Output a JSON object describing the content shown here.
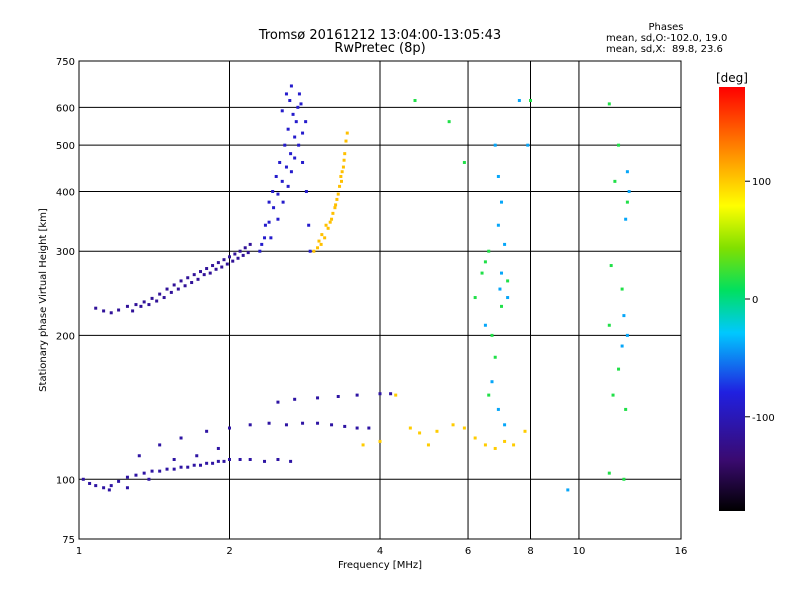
{
  "header": {
    "title": "Tromsø 20161212 13:04:00-13:05:43",
    "subtitle": "RwPretec (8p)"
  },
  "stats": {
    "heading": "Phases",
    "line1": "mean, sd,O:-102.0, 19.0",
    "line2": "mean, sd,X:  89.8, 23.6"
  },
  "chart_data": {
    "type": "scatter",
    "xlabel": "Frequency [MHz]",
    "ylabel": "Stationary phase Virtual Height [km]",
    "x_scale": "log",
    "y_scale": "log",
    "xlim": [
      1,
      16
    ],
    "ylim": [
      75,
      750
    ],
    "x_ticks": [
      1,
      2,
      4,
      6,
      8,
      10,
      16
    ],
    "x_tick_labels": [
      "1",
      "2",
      "4",
      "6",
      "8",
      "10",
      "16"
    ],
    "y_ticks": [
      75,
      100,
      200,
      300,
      400,
      500,
      600,
      750
    ],
    "y_tick_labels": [
      "75",
      "100",
      "200",
      "300",
      "400",
      "500",
      "600",
      "750"
    ],
    "grid": true,
    "color_by": "phase",
    "colorbar": {
      "label": "[deg]",
      "min": -180,
      "max": 180,
      "ticks": [
        -100,
        0,
        100
      ],
      "tick_labels": [
        "-100",
        "0",
        "100"
      ]
    },
    "series": [
      {
        "points": [
          [
            1.08,
            228
          ],
          [
            1.12,
            225
          ],
          [
            1.16,
            223
          ],
          [
            1.2,
            226
          ],
          [
            1.25,
            230
          ],
          [
            1.3,
            232
          ],
          [
            1.35,
            235
          ],
          [
            1.4,
            239
          ],
          [
            1.45,
            244
          ],
          [
            1.5,
            250
          ],
          [
            1.55,
            255
          ],
          [
            1.6,
            260
          ],
          [
            1.65,
            264
          ],
          [
            1.7,
            268
          ],
          [
            1.75,
            272
          ],
          [
            1.8,
            276
          ],
          [
            1.85,
            280
          ],
          [
            1.9,
            284
          ],
          [
            1.95,
            288
          ],
          [
            2.0,
            292
          ],
          [
            2.05,
            296
          ],
          [
            2.1,
            300
          ],
          [
            2.15,
            305
          ],
          [
            2.2,
            310
          ],
          [
            1.28,
            225
          ],
          [
            1.38,
            232
          ],
          [
            1.48,
            240
          ],
          [
            1.58,
            250
          ],
          [
            1.68,
            258
          ],
          [
            1.78,
            268
          ],
          [
            1.88,
            275
          ],
          [
            1.98,
            282
          ],
          [
            2.08,
            290
          ],
          [
            2.18,
            298
          ],
          [
            1.33,
            230
          ],
          [
            1.43,
            236
          ],
          [
            1.53,
            246
          ],
          [
            1.63,
            254
          ],
          [
            1.73,
            262
          ],
          [
            1.83,
            270
          ],
          [
            1.93,
            278
          ],
          [
            2.03,
            286
          ],
          [
            2.13,
            294
          ]
        ],
        "phase": -115
      },
      {
        "points": [
          [
            2.3,
            300
          ],
          [
            2.35,
            320
          ],
          [
            2.4,
            345
          ],
          [
            2.45,
            370
          ],
          [
            2.5,
            395
          ],
          [
            2.55,
            420
          ],
          [
            2.6,
            450
          ],
          [
            2.65,
            480
          ],
          [
            2.7,
            520
          ],
          [
            2.72,
            560
          ],
          [
            2.74,
            600
          ],
          [
            2.76,
            640
          ],
          [
            2.78,
            610
          ],
          [
            2.68,
            580
          ],
          [
            2.62,
            540
          ],
          [
            2.58,
            500
          ],
          [
            2.52,
            460
          ],
          [
            2.48,
            430
          ],
          [
            2.44,
            400
          ],
          [
            2.4,
            380
          ],
          [
            2.36,
            340
          ],
          [
            2.32,
            310
          ],
          [
            2.42,
            320
          ],
          [
            2.5,
            350
          ],
          [
            2.56,
            380
          ],
          [
            2.62,
            410
          ],
          [
            2.66,
            440
          ],
          [
            2.7,
            470
          ],
          [
            2.75,
            500
          ],
          [
            2.8,
            530
          ],
          [
            2.84,
            560
          ],
          [
            2.64,
            620
          ],
          [
            2.55,
            590
          ],
          [
            2.6,
            640
          ],
          [
            2.66,
            665
          ],
          [
            2.8,
            460
          ],
          [
            2.85,
            400
          ],
          [
            2.88,
            340
          ],
          [
            2.9,
            300
          ]
        ],
        "phase": -90
      },
      {
        "points": [
          [
            2.95,
            300
          ],
          [
            3.0,
            305
          ],
          [
            3.05,
            310
          ],
          [
            3.1,
            320
          ],
          [
            3.15,
            335
          ],
          [
            3.2,
            350
          ],
          [
            3.25,
            370
          ],
          [
            3.3,
            395
          ],
          [
            3.35,
            420
          ],
          [
            3.38,
            450
          ],
          [
            3.4,
            480
          ],
          [
            3.42,
            510
          ],
          [
            3.44,
            530
          ],
          [
            3.12,
            340
          ],
          [
            3.22,
            360
          ],
          [
            3.28,
            385
          ],
          [
            3.32,
            410
          ],
          [
            3.36,
            440
          ],
          [
            3.02,
            315
          ],
          [
            3.06,
            325
          ],
          [
            3.18,
            345
          ],
          [
            3.26,
            375
          ],
          [
            3.34,
            430
          ],
          [
            3.39,
            465
          ]
        ],
        "phase": 105
      },
      {
        "points": [
          [
            1.02,
            100
          ],
          [
            1.05,
            98
          ],
          [
            1.08,
            97
          ],
          [
            1.12,
            96
          ],
          [
            1.16,
            97
          ],
          [
            1.2,
            99
          ],
          [
            1.25,
            101
          ],
          [
            1.3,
            102
          ],
          [
            1.35,
            103
          ],
          [
            1.4,
            104
          ],
          [
            1.45,
            104
          ],
          [
            1.5,
            105
          ],
          [
            1.55,
            105
          ],
          [
            1.6,
            106
          ],
          [
            1.65,
            106
          ],
          [
            1.7,
            107
          ],
          [
            1.75,
            107
          ],
          [
            1.8,
            108
          ],
          [
            1.85,
            108
          ],
          [
            1.9,
            109
          ],
          [
            1.95,
            109
          ],
          [
            2.0,
            110
          ],
          [
            2.1,
            110
          ],
          [
            2.2,
            110
          ],
          [
            2.35,
            109
          ],
          [
            2.5,
            110
          ],
          [
            2.65,
            109
          ],
          [
            1.32,
            112
          ],
          [
            1.45,
            118
          ],
          [
            1.6,
            122
          ],
          [
            1.8,
            126
          ],
          [
            2.0,
            128
          ],
          [
            2.2,
            130
          ],
          [
            2.4,
            131
          ],
          [
            2.6,
            130
          ],
          [
            2.8,
            131
          ],
          [
            3.0,
            131
          ],
          [
            3.2,
            130
          ],
          [
            3.4,
            129
          ],
          [
            3.6,
            128
          ],
          [
            3.8,
            128
          ],
          [
            2.5,
            145
          ],
          [
            2.7,
            147
          ],
          [
            3.0,
            148
          ],
          [
            3.3,
            149
          ],
          [
            3.6,
            150
          ],
          [
            4.0,
            151
          ],
          [
            4.2,
            151
          ],
          [
            1.15,
            95
          ],
          [
            1.25,
            96
          ],
          [
            1.38,
            100
          ],
          [
            1.55,
            110
          ],
          [
            1.72,
            112
          ],
          [
            1.9,
            116
          ]
        ],
        "phase": -110
      },
      {
        "points": [
          [
            4.3,
            150
          ],
          [
            4.6,
            128
          ],
          [
            4.8,
            125
          ],
          [
            5.2,
            126
          ],
          [
            5.6,
            130
          ],
          [
            5.9,
            128
          ],
          [
            6.2,
            122
          ],
          [
            6.5,
            118
          ],
          [
            6.8,
            116
          ],
          [
            7.1,
            120
          ],
          [
            7.4,
            118
          ],
          [
            7.8,
            126
          ],
          [
            3.7,
            118
          ],
          [
            4.0,
            120
          ],
          [
            5.0,
            118
          ]
        ],
        "phase": 100
      },
      {
        "points": [
          [
            4.7,
            620
          ],
          [
            5.5,
            560
          ],
          [
            5.9,
            460
          ],
          [
            6.2,
            240
          ],
          [
            6.4,
            270
          ],
          [
            6.5,
            285
          ],
          [
            6.6,
            300
          ],
          [
            6.7,
            200
          ],
          [
            6.8,
            180
          ],
          [
            6.6,
            150
          ],
          [
            7.0,
            230
          ],
          [
            7.2,
            260
          ],
          [
            8.0,
            620
          ],
          [
            11.5,
            610
          ],
          [
            12.0,
            500
          ],
          [
            11.8,
            420
          ],
          [
            12.5,
            380
          ],
          [
            11.6,
            280
          ],
          [
            12.2,
            250
          ],
          [
            11.5,
            210
          ],
          [
            12.0,
            170
          ],
          [
            11.7,
            150
          ],
          [
            12.4,
            140
          ],
          [
            11.5,
            103
          ],
          [
            12.3,
            100
          ]
        ],
        "phase": 10
      },
      {
        "points": [
          [
            6.8,
            500
          ],
          [
            6.9,
            430
          ],
          [
            7.0,
            380
          ],
          [
            6.9,
            340
          ],
          [
            7.1,
            310
          ],
          [
            7.0,
            270
          ],
          [
            6.95,
            250
          ],
          [
            7.2,
            240
          ],
          [
            7.6,
            620
          ],
          [
            7.9,
            500
          ],
          [
            12.5,
            440
          ],
          [
            12.6,
            400
          ],
          [
            12.4,
            350
          ],
          [
            12.3,
            220
          ],
          [
            12.5,
            200
          ],
          [
            12.2,
            190
          ],
          [
            9.5,
            95
          ],
          [
            6.5,
            210
          ],
          [
            6.7,
            160
          ],
          [
            6.9,
            140
          ],
          [
            7.1,
            130
          ]
        ],
        "phase": -40
      }
    ]
  }
}
